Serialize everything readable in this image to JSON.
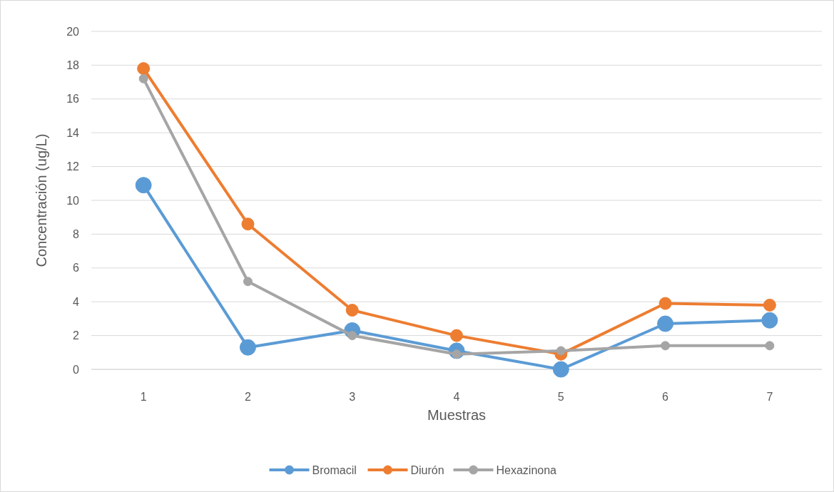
{
  "chart_data": {
    "type": "line",
    "xlabel": "Muestras",
    "ylabel": "Concentración (ug/L)",
    "categories": [
      "1",
      "2",
      "3",
      "4",
      "5",
      "6",
      "7"
    ],
    "series": [
      {
        "name": "Bromacil",
        "color": "#5b9bd5",
        "values": [
          10.9,
          1.3,
          2.3,
          1.1,
          0,
          2.7,
          2.9
        ]
      },
      {
        "name": "Diurón",
        "color": "#ed7d31",
        "values": [
          17.8,
          8.6,
          3.5,
          2.0,
          0.9,
          3.9,
          3.8
        ]
      },
      {
        "name": "Hexazinona",
        "color": "#a5a5a5",
        "values": [
          17.2,
          5.2,
          2.0,
          0.9,
          1.1,
          1.4,
          1.4
        ]
      }
    ],
    "ylim": [
      0,
      20
    ],
    "yticks": [
      0,
      2,
      4,
      6,
      8,
      10,
      12,
      14,
      16,
      18,
      20
    ],
    "grid": "y",
    "legend": "bottom",
    "marker": "circle",
    "line_style": "solid"
  }
}
